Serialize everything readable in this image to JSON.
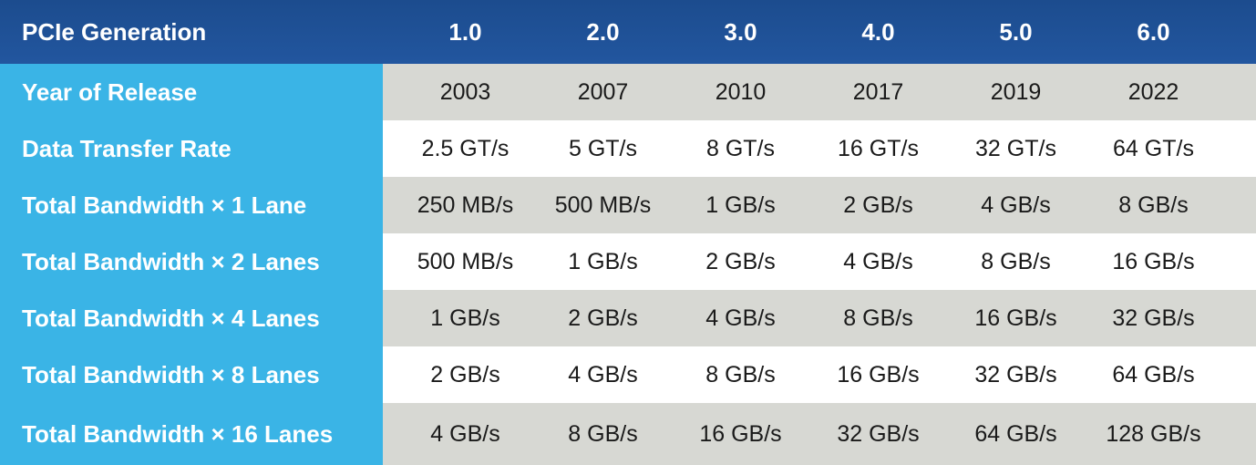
{
  "table": {
    "header": [
      "PCIe Generation",
      "1.0",
      "2.0",
      "3.0",
      "4.0",
      "5.0",
      "6.0"
    ],
    "rows": [
      [
        "Year of Release",
        "2003",
        "2007",
        "2010",
        "2017",
        "2019",
        "2022"
      ],
      [
        "Data Transfer Rate",
        "2.5 GT/s",
        "5 GT/s",
        "8 GT/s",
        "16 GT/s",
        "32 GT/s",
        "64 GT/s"
      ],
      [
        "Total Bandwidth × 1 Lane",
        "250 MB/s",
        "500 MB/s",
        "1 GB/s",
        "2 GB/s",
        "4 GB/s",
        "8 GB/s"
      ],
      [
        "Total Bandwidth × 2 Lanes",
        "500 MB/s",
        "1 GB/s",
        "2 GB/s",
        "4 GB/s",
        "8 GB/s",
        "16 GB/s"
      ],
      [
        "Total Bandwidth × 4 Lanes",
        "1 GB/s",
        "2 GB/s",
        "4 GB/s",
        "8 GB/s",
        "16 GB/s",
        "32 GB/s"
      ],
      [
        "Total Bandwidth × 8 Lanes",
        "2 GB/s",
        "4 GB/s",
        "8 GB/s",
        "16 GB/s",
        "32 GB/s",
        "64 GB/s"
      ],
      [
        "Total Bandwidth × 16 Lanes",
        "4 GB/s",
        "8 GB/s",
        "16 GB/s",
        "32 GB/s",
        "64 GB/s",
        "128 GB/s"
      ]
    ]
  }
}
